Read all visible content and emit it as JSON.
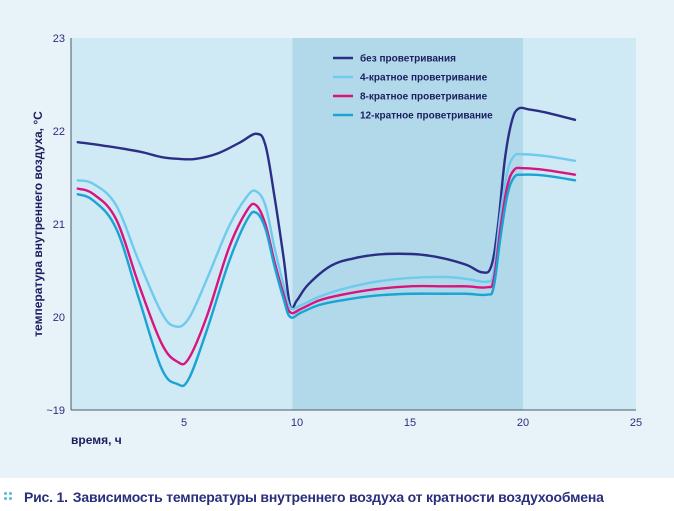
{
  "chart_data": {
    "type": "line",
    "title": "Зависимость температуры внутреннего воздуха от кратности воздухообмена",
    "xlabel": "время, ч",
    "ylabel": "температура внутреннего  воздуха, °С",
    "xlim": [
      0,
      25
    ],
    "ylim": [
      19,
      23
    ],
    "x_ticks": [
      "5",
      "10",
      "15",
      "20",
      "25"
    ],
    "y_ticks": [
      "~19",
      "20",
      "21",
      "22",
      "23"
    ],
    "shaded_range": [
      9.8,
      20.0
    ],
    "legend_position": "top-center",
    "series": [
      {
        "name": "без проветривания",
        "color": "#2b2e85",
        "x": [
          0.3,
          1.5,
          3.0,
          4.0,
          4.8,
          5.5,
          6.5,
          7.5,
          8.2,
          8.6,
          9.0,
          9.4,
          9.7,
          10.0,
          10.5,
          11.5,
          12.5,
          13.5,
          14.5,
          15.5,
          16.5,
          17.5,
          18.2,
          18.6,
          18.9,
          19.2,
          19.5,
          19.8,
          20.3,
          21.0,
          22.3
        ],
        "y": [
          21.88,
          21.84,
          21.78,
          21.72,
          21.7,
          21.7,
          21.76,
          21.88,
          21.97,
          21.85,
          21.3,
          20.65,
          20.12,
          20.18,
          20.35,
          20.55,
          20.63,
          20.67,
          20.68,
          20.67,
          20.63,
          20.56,
          20.48,
          20.55,
          21.0,
          21.7,
          22.1,
          22.24,
          22.23,
          22.2,
          22.12
        ]
      },
      {
        "name": "4-кратное проветривание",
        "color": "#6ecbee",
        "x": [
          0.3,
          1.0,
          2.0,
          3.0,
          4.0,
          4.6,
          5.2,
          6.0,
          7.0,
          7.8,
          8.2,
          8.6,
          9.0,
          9.4,
          9.7,
          10.2,
          11.0,
          12.0,
          13.5,
          15.0,
          16.5,
          17.5,
          18.4,
          18.7,
          19.0,
          19.3,
          19.6,
          20.0,
          21.0,
          22.3
        ],
        "y": [
          21.47,
          21.43,
          21.2,
          20.6,
          20.05,
          19.9,
          19.98,
          20.4,
          20.98,
          21.3,
          21.35,
          21.2,
          20.75,
          20.35,
          20.1,
          20.13,
          20.22,
          20.3,
          20.38,
          20.42,
          20.43,
          20.41,
          20.38,
          20.48,
          21.1,
          21.55,
          21.73,
          21.75,
          21.73,
          21.68
        ]
      },
      {
        "name": "8-кратное проветривание",
        "color": "#d9147e",
        "x": [
          0.3,
          1.0,
          2.0,
          3.0,
          4.0,
          4.7,
          5.2,
          6.0,
          7.0,
          7.8,
          8.2,
          8.6,
          9.0,
          9.4,
          9.7,
          10.2,
          11.0,
          12.0,
          13.5,
          15.0,
          16.5,
          17.5,
          18.4,
          18.7,
          19.0,
          19.3,
          19.6,
          20.0,
          21.0,
          22.3
        ],
        "y": [
          21.38,
          21.32,
          21.05,
          20.35,
          19.72,
          19.52,
          19.55,
          20.0,
          20.75,
          21.15,
          21.2,
          21.0,
          20.6,
          20.25,
          20.05,
          20.09,
          20.18,
          20.24,
          20.3,
          20.33,
          20.33,
          20.33,
          20.32,
          20.4,
          20.95,
          21.4,
          21.58,
          21.6,
          21.58,
          21.53
        ]
      },
      {
        "name": "12-кратное проветривание",
        "color": "#1aa3d3",
        "x": [
          0.3,
          1.0,
          2.0,
          3.0,
          4.0,
          4.7,
          5.2,
          6.0,
          7.0,
          7.8,
          8.2,
          8.6,
          9.0,
          9.4,
          9.7,
          10.2,
          11.0,
          12.0,
          13.5,
          15.0,
          16.5,
          17.5,
          18.4,
          18.7,
          19.0,
          19.3,
          19.6,
          20.0,
          21.0,
          22.3
        ],
        "y": [
          21.32,
          21.25,
          20.95,
          20.2,
          19.45,
          19.28,
          19.33,
          19.85,
          20.6,
          21.05,
          21.12,
          20.95,
          20.55,
          20.2,
          20.0,
          20.05,
          20.13,
          20.18,
          20.23,
          20.25,
          20.25,
          20.25,
          20.24,
          20.32,
          20.85,
          21.3,
          21.5,
          21.53,
          21.52,
          21.47
        ]
      }
    ]
  },
  "caption": {
    "label": "Рис. 1.",
    "text": "Зависимость температуры внутреннего воздуха от кратности воздухообмена"
  }
}
